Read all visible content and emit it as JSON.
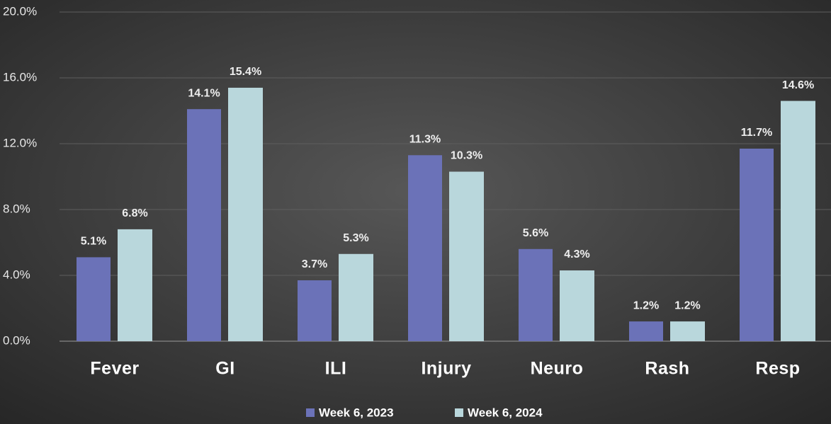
{
  "chart_data": {
    "type": "bar",
    "categories": [
      "Fever",
      "GI",
      "ILI",
      "Injury",
      "Neuro",
      "Rash",
      "Resp"
    ],
    "series": [
      {
        "name": "Week 6, 2023",
        "color": "#6b72b8",
        "values": [
          5.1,
          14.1,
          3.7,
          11.3,
          5.6,
          1.2,
          11.7
        ],
        "value_labels": [
          "5.1%",
          "14.1%",
          "3.7%",
          "11.3%",
          "5.6%",
          "1.2%",
          "11.7%"
        ]
      },
      {
        "name": "Week 6, 2024",
        "color": "#b9d7dc",
        "values": [
          6.8,
          15.4,
          5.3,
          10.3,
          4.3,
          1.2,
          14.6
        ],
        "value_labels": [
          "6.8%",
          "15.4%",
          "5.3%",
          "10.3%",
          "4.3%",
          "1.2%",
          "14.6%"
        ]
      }
    ],
    "ylim": [
      0,
      20
    ],
    "yticks": [
      {
        "value": 0,
        "label": "0.0%"
      },
      {
        "value": 4,
        "label": "4.0%"
      },
      {
        "value": 8,
        "label": "8.0%"
      },
      {
        "value": 12,
        "label": "12.0%"
      },
      {
        "value": 16,
        "label": "16.0%"
      },
      {
        "value": 20,
        "label": "20.0%"
      }
    ],
    "grid": true,
    "legend": "bottom"
  }
}
